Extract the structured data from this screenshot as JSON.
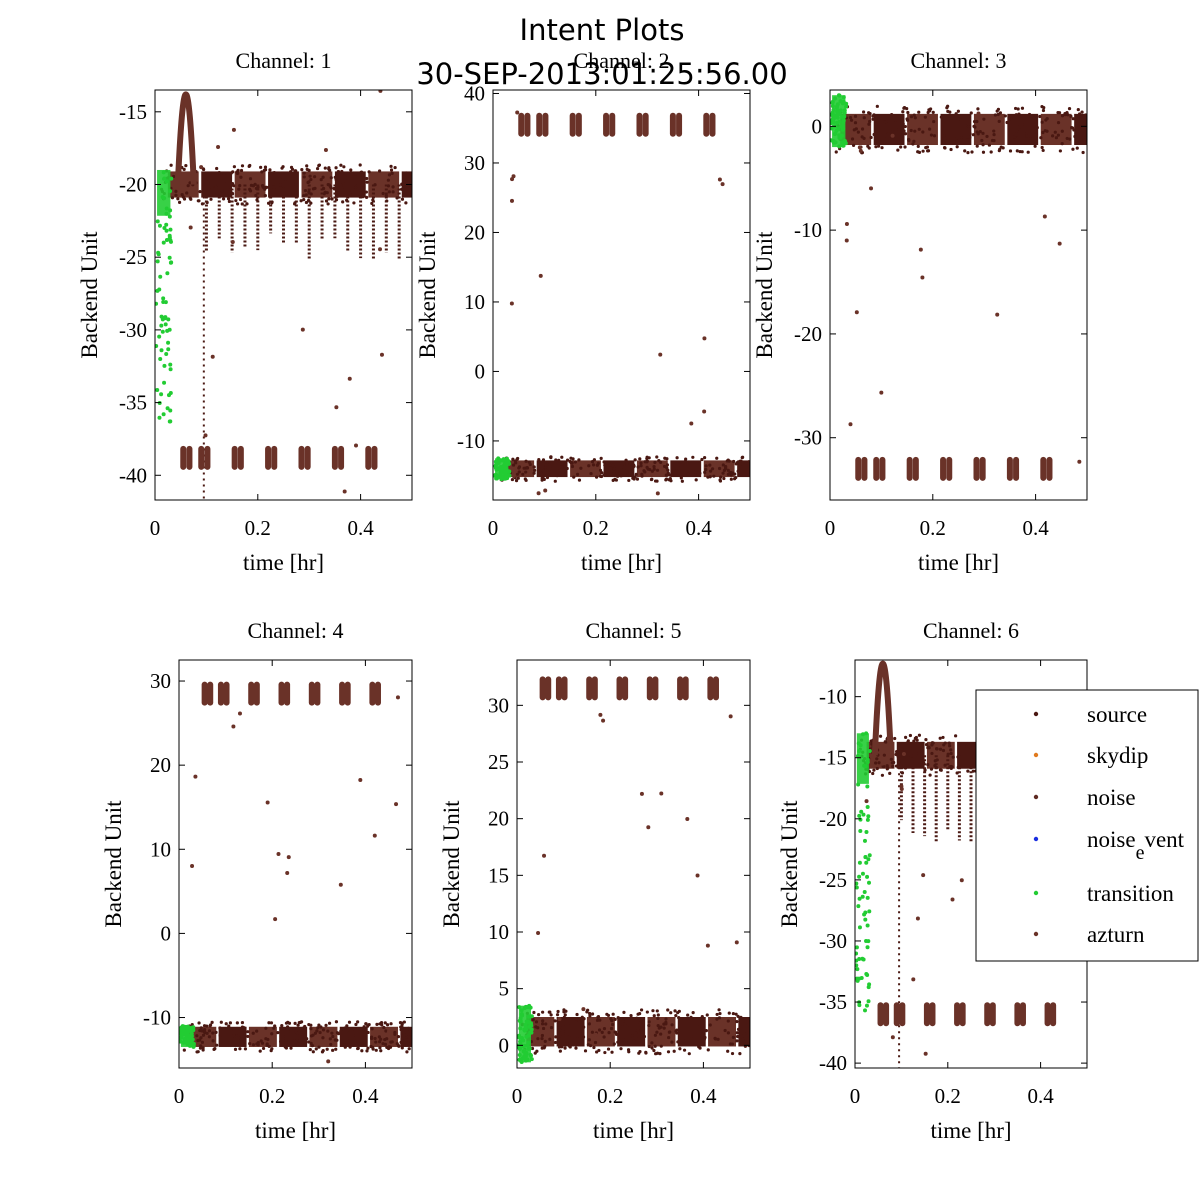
{
  "figure": {
    "title": "Intent Plots",
    "subtitle": "30-SEP-2013:01:25:56.00"
  },
  "colors": {
    "source": "#4a1812",
    "skydip": "#e07a1e",
    "noise": "#5e2a22",
    "noise_event": "#1a2ee0",
    "transition": "#22cc33",
    "azturn": "#6a3228"
  },
  "legend": {
    "placement": "right-of-channel-6",
    "entries": [
      {
        "key": "source",
        "label": "source"
      },
      {
        "key": "skydip",
        "label": "skydip"
      },
      {
        "key": "noise",
        "label": "noise"
      },
      {
        "key": "noise_event",
        "label": "noise",
        "sub": "e",
        "tail": "vent"
      },
      {
        "key": "transition",
        "label": "transition"
      },
      {
        "key": "azturn",
        "label": "azturn"
      }
    ]
  },
  "chart_data": [
    {
      "type": "scatter",
      "title": "Channel: 1",
      "xlabel": "time [hr]",
      "ylabel": "Backend Unit",
      "xlim": [
        0,
        0.5
      ],
      "ylim": [
        -41.7,
        -13.5
      ],
      "xticks": [
        "0",
        "0.2",
        "0.4"
      ],
      "xtick_values": [
        0,
        0.2,
        0.4
      ],
      "yticks": [
        "-15",
        "-20",
        "-25",
        "-30",
        "-35",
        "-40"
      ],
      "ytick_values": [
        -15,
        -20,
        -25,
        -30,
        -35,
        -40
      ],
      "baseline": -20,
      "baseline_halfwidth": 0.9,
      "azturn_level": -38.8,
      "dips_to": -25.5,
      "transition_range": [
        -36.5,
        -19
      ],
      "peak": {
        "x": 0.06,
        "y": -13.8
      }
    },
    {
      "type": "scatter",
      "title": "Channel: 2",
      "xlabel": "time [hr]",
      "ylabel": "Backend Unit",
      "xlim": [
        0,
        0.5
      ],
      "ylim": [
        -18.5,
        40.5
      ],
      "xticks": [
        "0",
        "0.2",
        "0.4"
      ],
      "xtick_values": [
        0,
        0.2,
        0.4
      ],
      "yticks": [
        "40",
        "30",
        "20",
        "10",
        "0",
        "-10"
      ],
      "ytick_values": [
        40,
        30,
        20,
        10,
        0,
        -10
      ],
      "baseline": -14,
      "baseline_halfwidth": 1.2,
      "azturn_level": 35.5,
      "dips_to": -14,
      "transition_range": [
        -15.5,
        -12.5
      ],
      "peak": null
    },
    {
      "type": "scatter",
      "title": "Channel: 3",
      "xlabel": "time [hr]",
      "ylabel": "Backend Unit",
      "xlim": [
        0,
        0.5
      ],
      "ylim": [
        -36,
        3.5
      ],
      "xticks": [
        "0",
        "0.2",
        "0.4"
      ],
      "xtick_values": [
        0,
        0.2,
        0.4
      ],
      "yticks": [
        "0",
        "-10",
        "-20",
        "-30"
      ],
      "ytick_values": [
        0,
        -10,
        -20,
        -30
      ],
      "baseline": -0.3,
      "baseline_halfwidth": 1.5,
      "azturn_level": -33,
      "dips_to": -0.3,
      "transition_range": [
        -2,
        3
      ],
      "peak": null
    },
    {
      "type": "scatter",
      "title": "Channel: 4",
      "xlabel": "time [hr]",
      "ylabel": "Backend Unit",
      "xlim": [
        0,
        0.5
      ],
      "ylim": [
        -16,
        32.5
      ],
      "xticks": [
        "0",
        "0.2",
        "0.4"
      ],
      "xtick_values": [
        0,
        0.2,
        0.4
      ],
      "yticks": [
        "30",
        "20",
        "10",
        "0",
        "-10"
      ],
      "ytick_values": [
        30,
        20,
        10,
        0,
        -10
      ],
      "baseline": -12.3,
      "baseline_halfwidth": 1.2,
      "azturn_level": 28.5,
      "dips_to": -12.3,
      "transition_range": [
        -13.5,
        -11
      ],
      "peak": null
    },
    {
      "type": "scatter",
      "title": "Channel: 5",
      "xlabel": "time [hr]",
      "ylabel": "Backend Unit",
      "xlim": [
        0,
        0.5
      ],
      "ylim": [
        -2,
        34
      ],
      "xticks": [
        "0",
        "0.2",
        "0.4"
      ],
      "xtick_values": [
        0,
        0.2,
        0.4
      ],
      "yticks": [
        "30",
        "25",
        "20",
        "15",
        "10",
        "5",
        "0"
      ],
      "ytick_values": [
        30,
        25,
        20,
        15,
        10,
        5,
        0
      ],
      "baseline": 1.2,
      "baseline_halfwidth": 1.3,
      "azturn_level": 31.5,
      "dips_to": 1.2,
      "transition_range": [
        -1.5,
        3.5
      ],
      "peak": null
    },
    {
      "type": "scatter",
      "title": "Channel: 6",
      "xlabel": "time [hr]",
      "ylabel": "Backend Unit",
      "xlim": [
        0,
        0.5
      ],
      "ylim": [
        -40.4,
        -7
      ],
      "xticks": [
        "0",
        "0.2",
        "0.4"
      ],
      "xtick_values": [
        0,
        0.2,
        0.4
      ],
      "yticks": [
        "-10",
        "-15",
        "-20",
        "-25",
        "-30",
        "-35",
        "-40"
      ],
      "ytick_values": [
        -10,
        -15,
        -20,
        -25,
        -30,
        -35,
        -40
      ],
      "baseline": -14.8,
      "baseline_halfwidth": 1.1,
      "azturn_level": -36,
      "dips_to": -22,
      "transition_range": [
        -36,
        -13
      ],
      "peak": {
        "x": 0.06,
        "y": -7.3
      }
    }
  ]
}
